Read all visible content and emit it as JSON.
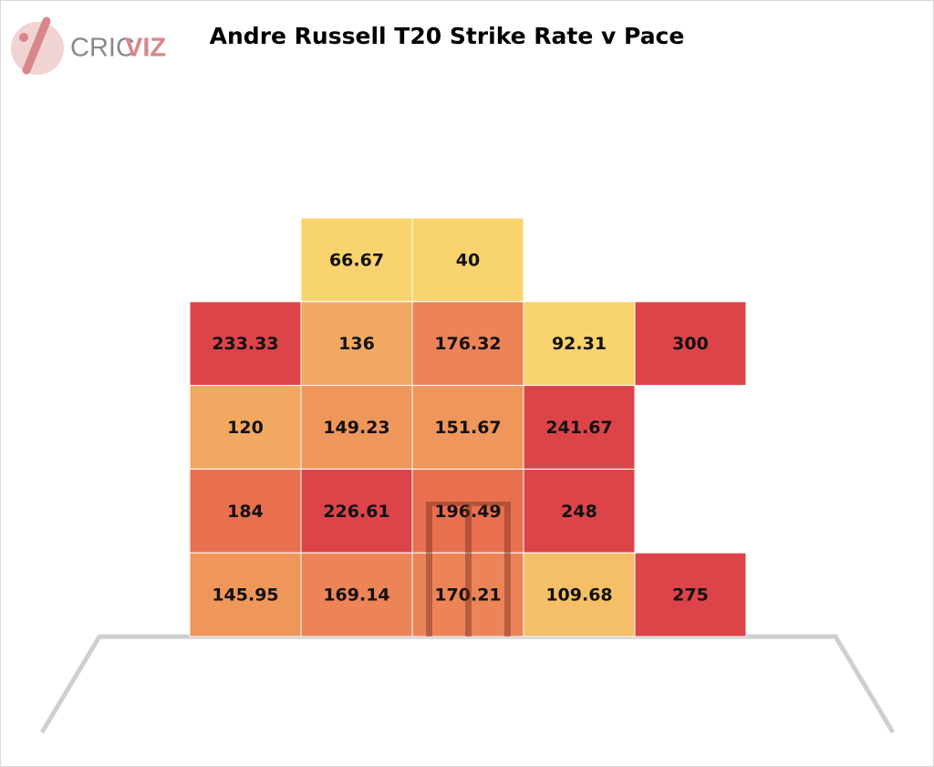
{
  "brand": [
    "CRIC",
    "VIZ"
  ],
  "chart_data": {
    "type": "heatmap",
    "title": "Andre Russell T20 Strike Rate v Pace",
    "rows": [
      [
        null,
        66.67,
        40,
        null,
        null
      ],
      [
        233.33,
        136,
        176.32,
        92.31,
        300
      ],
      [
        120,
        149.23,
        151.67,
        241.67,
        null
      ],
      [
        184,
        226.61,
        196.49,
        248,
        null
      ],
      [
        145.95,
        169.14,
        170.21,
        109.68,
        275
      ]
    ],
    "colors": [
      [
        null,
        "#f9d46e",
        "#f9d46e",
        null,
        null
      ],
      [
        "#dc444a",
        "#f2a860",
        "#ec8458",
        "#f9d46e",
        "#dc444a"
      ],
      [
        "#f2a860",
        "#ef965b",
        "#ef965b",
        "#dc444a",
        null
      ],
      [
        "#e8704f",
        "#dc444a",
        "#e8704f",
        "#dc444a",
        null
      ],
      [
        "#ef965b",
        "#ec8458",
        "#ec8458",
        "#f5bf68",
        "#dc444a"
      ]
    ]
  }
}
